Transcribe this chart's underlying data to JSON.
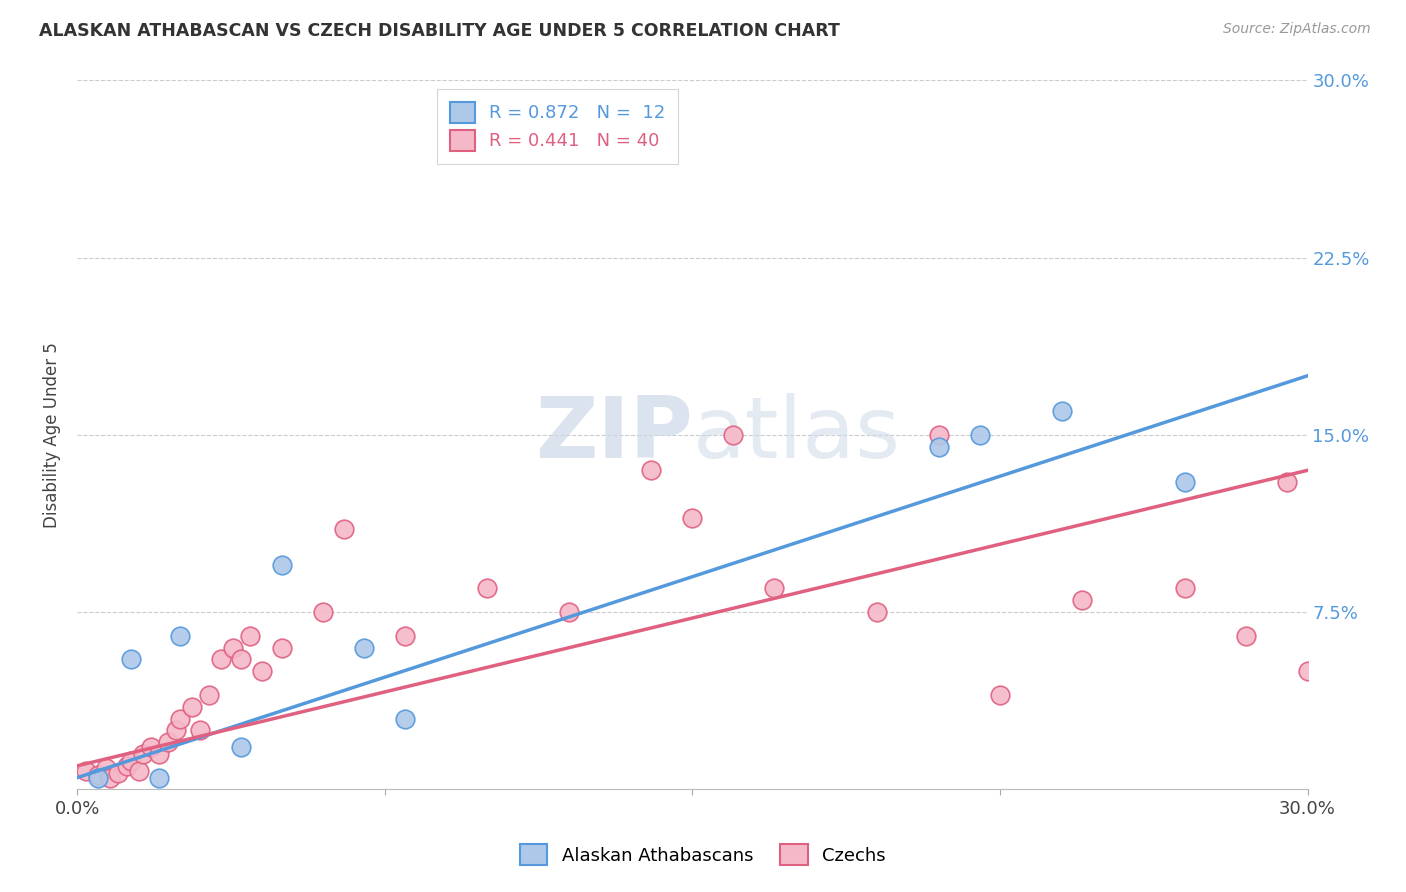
{
  "title": "ALASKAN ATHABASCAN VS CZECH DISABILITY AGE UNDER 5 CORRELATION CHART",
  "source": "Source: ZipAtlas.com",
  "ylabel": "Disability Age Under 5",
  "xlim": [
    0.0,
    0.3
  ],
  "ylim": [
    0.0,
    0.3
  ],
  "yticks": [
    0.0,
    0.075,
    0.15,
    0.225,
    0.3
  ],
  "ytick_labels": [
    "",
    "7.5%",
    "15.0%",
    "22.5%",
    "30.0%"
  ],
  "xticks": [
    0.0,
    0.075,
    0.15,
    0.225,
    0.3
  ],
  "blue_color": "#adc8e8",
  "pink_color": "#f5b8c8",
  "blue_line_color": "#5599dd",
  "pink_line_color": "#e06080",
  "right_axis_color": "#5599dd",
  "watermark_color": "#ccd9e8",
  "blue_scatter_x": [
    0.005,
    0.013,
    0.02,
    0.025,
    0.04,
    0.05,
    0.07,
    0.08,
    0.21,
    0.22,
    0.24,
    0.27
  ],
  "blue_scatter_y": [
    0.005,
    0.055,
    0.005,
    0.065,
    0.018,
    0.095,
    0.06,
    0.03,
    0.145,
    0.15,
    0.16,
    0.13
  ],
  "pink_scatter_x": [
    0.002,
    0.005,
    0.007,
    0.008,
    0.01,
    0.012,
    0.013,
    0.015,
    0.016,
    0.018,
    0.02,
    0.022,
    0.024,
    0.025,
    0.028,
    0.03,
    0.032,
    0.035,
    0.038,
    0.04,
    0.042,
    0.045,
    0.05,
    0.06,
    0.065,
    0.08,
    0.1,
    0.12,
    0.14,
    0.15,
    0.16,
    0.17,
    0.195,
    0.21,
    0.225,
    0.245,
    0.27,
    0.285,
    0.295,
    0.3
  ],
  "pink_scatter_y": [
    0.008,
    0.006,
    0.009,
    0.005,
    0.007,
    0.01,
    0.012,
    0.008,
    0.015,
    0.018,
    0.015,
    0.02,
    0.025,
    0.03,
    0.035,
    0.025,
    0.04,
    0.055,
    0.06,
    0.055,
    0.065,
    0.05,
    0.06,
    0.075,
    0.11,
    0.065,
    0.085,
    0.075,
    0.135,
    0.115,
    0.15,
    0.085,
    0.075,
    0.15,
    0.04,
    0.08,
    0.085,
    0.065,
    0.13,
    0.05
  ],
  "blue_line_x0": 0.0,
  "blue_line_y0": 0.005,
  "blue_line_x1": 0.3,
  "blue_line_y1": 0.175,
  "pink_line_x0": 0.0,
  "pink_line_y0": 0.01,
  "pink_line_x1": 0.3,
  "pink_line_y1": 0.135
}
